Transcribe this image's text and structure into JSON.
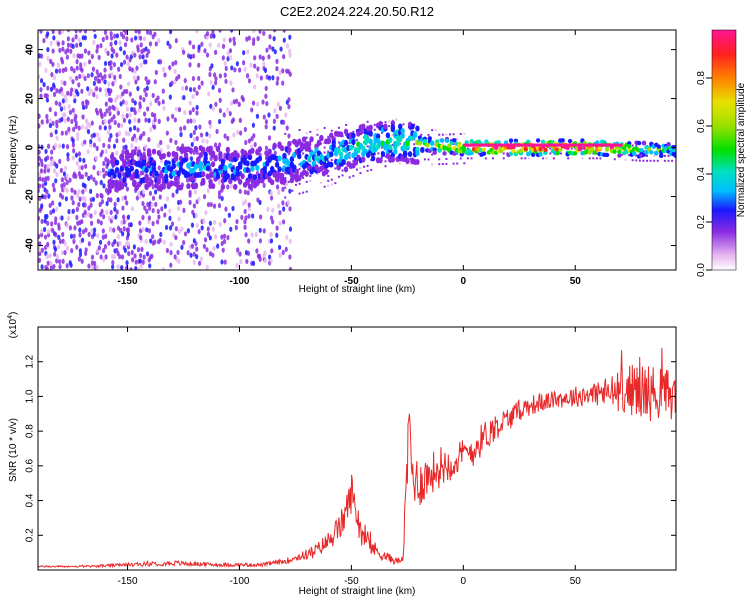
{
  "title": "C2E2.2024.224.20.50.R12",
  "chart_data": [
    {
      "type": "heatmap",
      "xlabel": "Height of straight line (km)",
      "ylabel": "Frequency (Hz)",
      "xlim": [
        -190,
        95
      ],
      "ylim": [
        -50,
        48
      ],
      "xticks": [
        -150,
        -100,
        -50,
        0,
        50
      ],
      "yticks": [
        -40,
        -20,
        0,
        20,
        40
      ],
      "colorbar": {
        "label": "Normalized spectral amplitude",
        "range": [
          0.0,
          1.0
        ],
        "ticks": [
          "0.0",
          "0.2",
          "0.4",
          "0.6",
          "0.8"
        ]
      },
      "ridge": {
        "x": [
          -155,
          -140,
          -120,
          -100,
          -80,
          -60,
          -45,
          -30,
          -15,
          0,
          20,
          40,
          60,
          80,
          95
        ],
        "y": [
          -10,
          -9,
          -8,
          -9,
          -6,
          -3,
          1,
          3,
          1,
          0,
          0,
          0,
          0,
          -1,
          -1
        ],
        "peak_amplitude": [
          0.25,
          0.28,
          0.3,
          0.3,
          0.3,
          0.35,
          0.45,
          0.45,
          0.55,
          0.85,
          1.0,
          1.0,
          0.95,
          0.5,
          0.45
        ]
      },
      "grid": false
    },
    {
      "type": "line",
      "xlabel": "Height of straight line (km)",
      "ylabel": "SNR (10 * v/v)",
      "y_multiplier": "(x10",
      "y_multiplier_exp": "4",
      "y_multiplier_close": ")",
      "xlim": [
        -190,
        95
      ],
      "ylim": [
        0,
        1.4
      ],
      "xticks": [
        -150,
        -100,
        -50,
        0,
        50
      ],
      "yticks": [
        0.2,
        0.4,
        0.6,
        0.8,
        1.0,
        1.2
      ],
      "series": [
        {
          "color": "#e8292a",
          "x": [
            -190,
            -170,
            -150,
            -130,
            -110,
            -90,
            -80,
            -75,
            -70,
            -65,
            -60,
            -55,
            -52,
            -50,
            -48,
            -45,
            -40,
            -35,
            -30,
            -27,
            -25,
            -24,
            -23,
            -20,
            -15,
            -10,
            -5,
            0,
            5,
            10,
            15,
            20,
            25,
            30,
            40,
            50,
            60,
            65,
            70,
            75,
            80,
            85,
            90,
            95
          ],
          "y": [
            0.02,
            0.02,
            0.03,
            0.04,
            0.03,
            0.03,
            0.05,
            0.07,
            0.09,
            0.12,
            0.17,
            0.25,
            0.35,
            0.45,
            0.35,
            0.2,
            0.12,
            0.08,
            0.05,
            0.06,
            0.6,
            0.9,
            0.55,
            0.5,
            0.55,
            0.6,
            0.62,
            0.66,
            0.7,
            0.78,
            0.83,
            0.87,
            0.92,
            0.95,
            0.98,
            1.0,
            1.02,
            1.02,
            1.03,
            1.04,
            1.03,
            1.02,
            1.02,
            1.0
          ],
          "noise": [
            0.005,
            0.005,
            0.01,
            0.015,
            0.01,
            0.01,
            0.015,
            0.02,
            0.03,
            0.04,
            0.06,
            0.08,
            0.1,
            0.12,
            0.1,
            0.08,
            0.05,
            0.03,
            0.02,
            0.02,
            0.18,
            0.2,
            0.15,
            0.15,
            0.12,
            0.12,
            0.1,
            0.1,
            0.1,
            0.09,
            0.08,
            0.07,
            0.06,
            0.06,
            0.05,
            0.06,
            0.08,
            0.1,
            0.12,
            0.15,
            0.18,
            0.16,
            0.15,
            0.14
          ]
        }
      ],
      "grid": false
    }
  ]
}
